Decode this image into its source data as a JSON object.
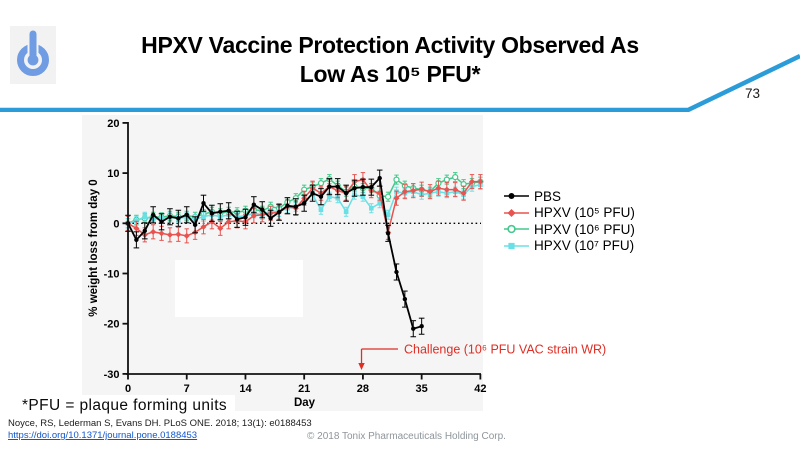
{
  "slide": {
    "title_line1": "HPXV Vaccine Protection Activity Observed As",
    "title_line2": "Low As 10⁵ PFU*",
    "page_number": "73",
    "footnote": "*PFU = plaque forming units",
    "citation": "Noyce, RS, Lederman S, Evans DH. PLoS ONE. 2018; 13(1): e0188453",
    "doi_link": "https://doi.org/10.1371/journal.pone.0188453",
    "copyright": "© 2018 Tonix Pharmaceuticals Holding Corp.",
    "accent_blue": "#2b9cd8",
    "logo_blue": "#6f9ce2"
  },
  "chart_data": {
    "type": "line",
    "xlabel": "Day",
    "ylabel": "% weight loss from day 0",
    "xlim": [
      0,
      42
    ],
    "ylim": [
      -30,
      20
    ],
    "xticks": [
      0,
      7,
      14,
      21,
      28,
      35,
      42
    ],
    "yticks": [
      20,
      10,
      0,
      -10,
      -20,
      -30
    ],
    "zero_line_dotted": true,
    "plot_background": "#f5f5f5",
    "legend_position": "right",
    "annotation": {
      "text": "Challenge (10⁶ PFU VAC strain WR)",
      "arrow_day": 28,
      "color": "#dd2f26"
    },
    "series": [
      {
        "name": "PBS",
        "color": "#000000",
        "marker": "circle",
        "error_bar": 1.6,
        "values": [
          0,
          -3.3,
          -1.5,
          1.7,
          0.3,
          1.3,
          1.0,
          1.7,
          -0.3,
          4.0,
          2.0,
          2.3,
          2.5,
          0.8,
          1.2,
          3.7,
          2.7,
          1.0,
          2.2,
          3.5,
          3.3,
          4.0,
          6.0,
          5.3,
          7.3,
          7.3,
          6.0,
          7.0,
          7.2,
          7.2,
          9.0,
          -2.0,
          -9.7,
          -15.1,
          -21.0,
          -20.5
        ]
      },
      {
        "name": "HPXV (10⁵ PFU)",
        "color": "#e8534f",
        "marker": "diamond",
        "error_bar": 1.4,
        "values": [
          0,
          -1.0,
          -2.3,
          -1.7,
          -2.0,
          -2.3,
          -2.2,
          -2.5,
          -1.8,
          -0.7,
          0.3,
          -1.0,
          0.3,
          0.5,
          0.3,
          1.5,
          1.7,
          2.0,
          2.2,
          3.3,
          3.0,
          5.0,
          7.0,
          6.0,
          7.3,
          6.5,
          6.0,
          8.3,
          8.7,
          6.5,
          6.0,
          -1.8,
          5.0,
          6.3,
          6.5,
          6.8,
          6.3,
          7.0,
          6.7,
          6.7,
          6.0,
          8.3,
          8.3
        ]
      },
      {
        "name": "HPXV (10⁶ PFU)",
        "color": "#43c98b",
        "marker": "open-circle",
        "error_bar": 0.9,
        "values": [
          0,
          0.7,
          1.0,
          1.3,
          1.2,
          1.5,
          1.3,
          1.5,
          1.3,
          1.8,
          2.3,
          2.0,
          2.3,
          2.2,
          2.5,
          2.7,
          2.5,
          3.3,
          3.0,
          4.2,
          5.0,
          6.7,
          7.3,
          8.0,
          8.8,
          7.5,
          6.3,
          7.3,
          7.0,
          7.0,
          5.5,
          5.3,
          8.7,
          7.5,
          7.0,
          6.7,
          6.3,
          8.0,
          8.7,
          9.2,
          7.8,
          8.0,
          8.3
        ]
      },
      {
        "name": "HPXV (10⁷ PFU)",
        "color": "#68e0e6",
        "marker": "square",
        "error_bar": 0.9,
        "values": [
          0,
          0.5,
          1.3,
          0.8,
          1.0,
          1.2,
          1.0,
          1.2,
          0.8,
          1.3,
          1.7,
          1.3,
          1.7,
          1.3,
          1.5,
          2.0,
          1.7,
          2.5,
          2.3,
          3.0,
          3.3,
          4.5,
          5.7,
          2.7,
          5.3,
          5.0,
          2.3,
          5.7,
          5.3,
          3.0,
          4.0,
          1.7,
          6.3,
          6.0,
          6.3,
          5.7,
          6.0,
          6.3,
          6.0,
          6.3,
          5.7,
          7.3,
          7.7
        ]
      }
    ]
  }
}
